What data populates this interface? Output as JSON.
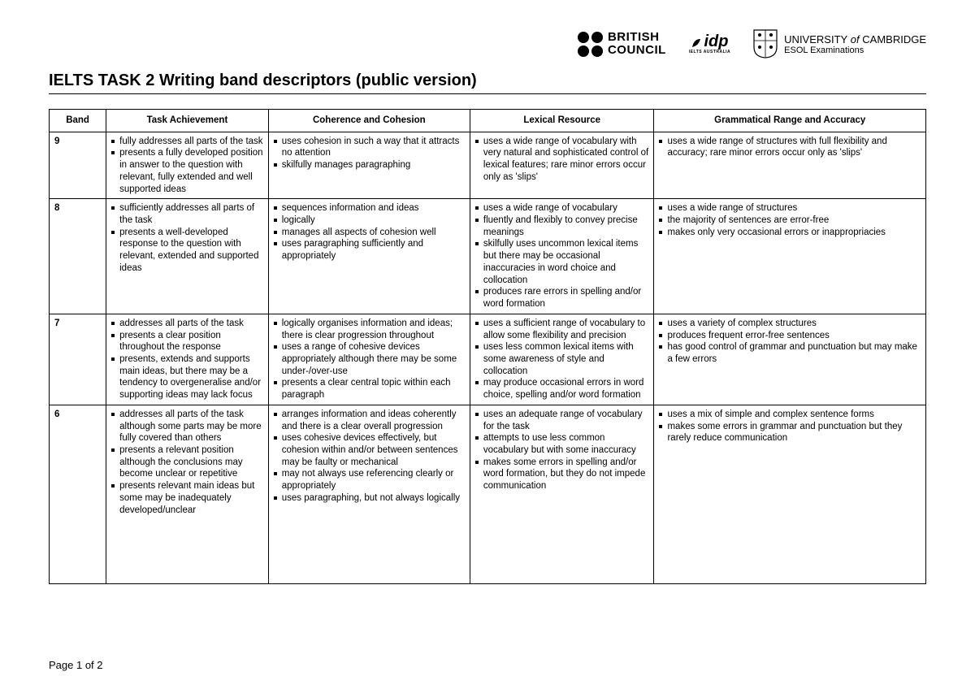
{
  "logos": {
    "british_council": {
      "line1": "BRITISH",
      "line2": "COUNCIL"
    },
    "idp": {
      "main": "idp",
      "sub": "IELTS AUSTRALIA"
    },
    "cambridge": {
      "line1_a": "UNIVERSITY",
      "line1_of": " of ",
      "line1_b": "CAMBRIDGE",
      "line2": "ESOL Examinations"
    }
  },
  "title": "IELTS TASK 2 Writing band descriptors (public version)",
  "columns": [
    "Band",
    "Task Achievement",
    "Coherence and Cohesion",
    "Lexical Resource",
    "Grammatical Range and Accuracy"
  ],
  "rows": [
    {
      "band": "9",
      "ta": [
        "fully addresses all parts of the task",
        "presents a fully developed position in answer to the question with relevant, fully extended and well supported ideas"
      ],
      "cc": [
        "uses cohesion in such a way that it attracts no attention",
        "skilfully manages paragraphing"
      ],
      "lr": [
        "uses a wide range of vocabulary with very natural and sophisticated control of lexical features; rare minor errors occur only as 'slips'"
      ],
      "gr": [
        "uses a wide range of structures with full flexibility and accuracy; rare minor errors occur only as 'slips'"
      ]
    },
    {
      "band": "8",
      "ta": [
        "sufficiently addresses all parts of the task",
        "presents a well-developed response to the question with relevant, extended and supported ideas"
      ],
      "cc": [
        "sequences information and ideas",
        "logically",
        "manages all aspects of cohesion well",
        "uses paragraphing sufficiently and appropriately"
      ],
      "lr": [
        "uses a wide range of vocabulary",
        "fluently and flexibly to convey precise meanings",
        "skilfully uses uncommon lexical items but there may be occasional inaccuracies in word choice and collocation",
        "produces rare errors in spelling and/or word formation"
      ],
      "gr": [
        "uses a wide range of structures",
        "the majority of sentences are error-free",
        "makes only very occasional errors or inappropriacies"
      ]
    },
    {
      "band": "7",
      "ta": [
        "addresses all parts of the task",
        "presents a clear position throughout the response",
        "presents, extends and supports main ideas, but there may be a tendency to overgeneralise and/or supporting ideas may lack focus"
      ],
      "cc": [
        "logically organises information and ideas; there is clear progression throughout",
        "uses a range of cohesive devices appropriately although there may be some under-/over-use",
        "presents a clear central topic within each paragraph"
      ],
      "lr": [
        "uses a sufficient range of vocabulary to allow some flexibility and precision",
        "uses less common lexical items with some awareness of style and collocation",
        "may produce occasional errors in word choice, spelling and/or word formation"
      ],
      "gr": [
        "uses a variety of complex structures",
        "produces frequent error-free sentences",
        "has good control of grammar and punctuation but may make a few errors"
      ]
    },
    {
      "band": "6",
      "ta": [
        "addresses all parts of the task although some parts may be more fully covered than others",
        "presents a relevant position although the conclusions may become unclear or repetitive",
        "presents relevant main ideas but some may be inadequately developed/unclear"
      ],
      "cc": [
        "arranges information and ideas coherently and there is a clear overall progression",
        "uses cohesive devices effectively, but cohesion within and/or between sentences may be faulty or mechanical",
        "may not always use referencing clearly or appropriately",
        "uses paragraphing, but not always logically"
      ],
      "lr": [
        "uses an adequate range of vocabulary for the task",
        "attempts to use less common vocabulary but with some inaccuracy",
        "makes some errors in spelling and/or word formation, but they do not impede communication"
      ],
      "gr": [
        "uses a mix of simple and complex sentence forms",
        "makes some errors in grammar and punctuation but they rarely reduce communication"
      ]
    }
  ],
  "footer": "Page 1 of 2"
}
